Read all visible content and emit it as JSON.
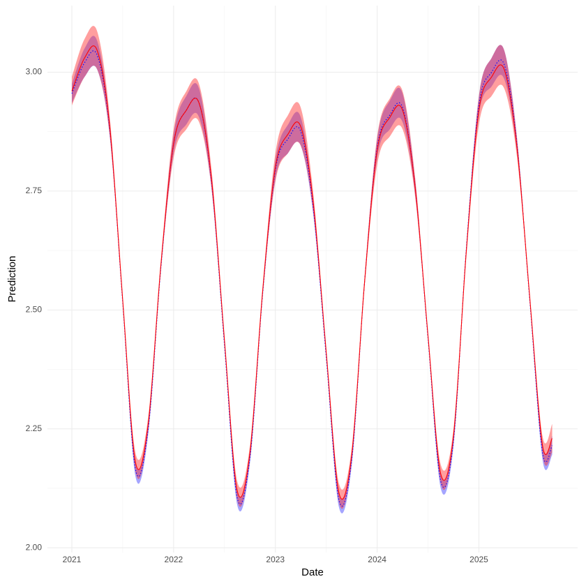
{
  "chart_data": {
    "type": "line",
    "x_label": "Date",
    "y_label": "Prediction",
    "x": [
      2021,
      2021.125,
      2021.25,
      2021.375,
      2021.5,
      2021.625,
      2021.75,
      2021.875,
      2022,
      2022.125,
      2022.25,
      2022.375,
      2022.5,
      2022.625,
      2022.75,
      2022.875,
      2023,
      2023.125,
      2023.25,
      2023.375,
      2023.5,
      2023.625,
      2023.75,
      2023.875,
      2024,
      2024.125,
      2024.25,
      2024.375,
      2024.5,
      2024.625,
      2024.75,
      2024.875,
      2025,
      2025.125,
      2025.25,
      2025.375,
      2025.5,
      2025.625,
      2025.72
    ],
    "series": [
      {
        "color": "#0000ff",
        "band_color": "rgba(40,40,255,0.42)",
        "dash": "dotted",
        "values": [
          2.955,
          3.02,
          3.035,
          2.875,
          2.515,
          2.165,
          2.25,
          2.59,
          2.85,
          2.92,
          2.935,
          2.765,
          2.425,
          2.105,
          2.19,
          2.535,
          2.795,
          2.86,
          2.875,
          2.71,
          2.4,
          2.1,
          2.185,
          2.555,
          2.84,
          2.91,
          2.925,
          2.755,
          2.44,
          2.14,
          2.225,
          2.625,
          2.93,
          3.0,
          3.015,
          2.845,
          2.52,
          2.2,
          2.215
        ],
        "lower": [
          2.935,
          2.99,
          3.005,
          2.86,
          2.51,
          2.15,
          2.238,
          2.582,
          2.83,
          2.89,
          2.905,
          2.75,
          2.42,
          2.09,
          2.178,
          2.527,
          2.775,
          2.83,
          2.845,
          2.695,
          2.395,
          2.085,
          2.173,
          2.547,
          2.82,
          2.88,
          2.895,
          2.74,
          2.435,
          2.125,
          2.213,
          2.617,
          2.91,
          2.97,
          2.985,
          2.83,
          2.515,
          2.185,
          2.195
        ],
        "upper": [
          2.975,
          3.05,
          3.065,
          2.89,
          2.52,
          2.18,
          2.262,
          2.598,
          2.87,
          2.95,
          2.965,
          2.78,
          2.43,
          2.12,
          2.202,
          2.543,
          2.815,
          2.89,
          2.905,
          2.725,
          2.405,
          2.115,
          2.197,
          2.563,
          2.86,
          2.94,
          2.955,
          2.77,
          2.445,
          2.155,
          2.237,
          2.633,
          2.95,
          3.03,
          3.045,
          2.86,
          2.525,
          2.215,
          2.235
        ]
      },
      {
        "color": "#ff0000",
        "band_color": "rgba(255,40,40,0.45)",
        "dash": "solid",
        "values": [
          2.96,
          3.03,
          3.045,
          2.88,
          2.52,
          2.18,
          2.26,
          2.595,
          2.85,
          2.92,
          2.935,
          2.77,
          2.435,
          2.12,
          2.2,
          2.54,
          2.8,
          2.87,
          2.885,
          2.72,
          2.41,
          2.115,
          2.195,
          2.555,
          2.835,
          2.905,
          2.92,
          2.755,
          2.445,
          2.155,
          2.235,
          2.62,
          2.92,
          2.99,
          3.005,
          2.84,
          2.525,
          2.215,
          2.23
        ],
        "lower": [
          2.93,
          2.99,
          3.005,
          2.86,
          2.515,
          2.16,
          2.245,
          2.585,
          2.82,
          2.88,
          2.895,
          2.75,
          2.43,
          2.1,
          2.185,
          2.53,
          2.77,
          2.83,
          2.845,
          2.7,
          2.405,
          2.095,
          2.18,
          2.545,
          2.805,
          2.865,
          2.88,
          2.735,
          2.44,
          2.135,
          2.22,
          2.61,
          2.89,
          2.95,
          2.965,
          2.82,
          2.52,
          2.195,
          2.2
        ],
        "upper": [
          2.99,
          3.07,
          3.085,
          2.9,
          2.525,
          2.2,
          2.275,
          2.605,
          2.88,
          2.96,
          2.975,
          2.79,
          2.44,
          2.14,
          2.215,
          2.55,
          2.83,
          2.91,
          2.925,
          2.74,
          2.415,
          2.135,
          2.21,
          2.565,
          2.865,
          2.945,
          2.96,
          2.775,
          2.45,
          2.175,
          2.25,
          2.63,
          2.95,
          3.03,
          3.045,
          2.86,
          2.53,
          2.235,
          2.26
        ]
      }
    ],
    "xlim": [
      2020.76,
      2025.97
    ],
    "xticks": [
      2021,
      2022,
      2023,
      2024,
      2025
    ],
    "ylim": [
      1.99,
      3.14
    ],
    "yticks": [
      {
        "value": 2,
        "label": "2.00"
      },
      2.25,
      {
        "value": 2.5,
        "label": "2.50"
      },
      2.75,
      {
        "value": 3,
        "label": "3.00"
      }
    ],
    "grid": true
  }
}
